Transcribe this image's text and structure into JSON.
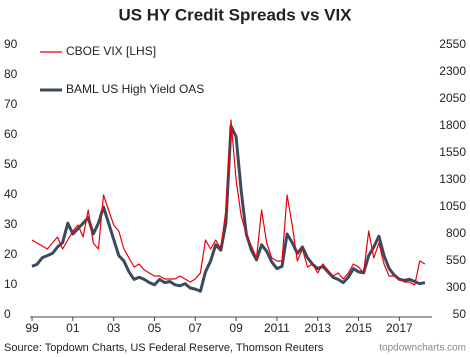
{
  "chart_data": {
    "type": "line",
    "title": "US HY Credit Spreads vs VIX",
    "source": "Source: Topdown Charts, US Federal Reserve, Thomson Reuters",
    "watermark": "topdowncharts.com",
    "x": [
      1999,
      1999.25,
      1999.5,
      1999.75,
      2000,
      2000.25,
      2000.5,
      2000.75,
      2001,
      2001.25,
      2001.5,
      2001.75,
      2002,
      2002.25,
      2002.5,
      2002.75,
      2003,
      2003.25,
      2003.5,
      2003.75,
      2004,
      2004.25,
      2004.5,
      2004.75,
      2005,
      2005.25,
      2005.5,
      2005.75,
      2006,
      2006.25,
      2006.5,
      2006.75,
      2007,
      2007.25,
      2007.5,
      2007.75,
      2008,
      2008.25,
      2008.5,
      2008.75,
      2009,
      2009.25,
      2009.5,
      2009.75,
      2010,
      2010.25,
      2010.5,
      2010.75,
      2011,
      2011.25,
      2011.5,
      2011.75,
      2012,
      2012.25,
      2012.5,
      2012.75,
      2013,
      2013.25,
      2013.5,
      2013.75,
      2014,
      2014.25,
      2014.5,
      2014.75,
      2015,
      2015.25,
      2015.5,
      2015.75,
      2016,
      2016.25,
      2016.5,
      2016.75,
      2017,
      2017.25,
      2017.5,
      2017.75,
      2018,
      2018.25
    ],
    "xlim": [
      1998.9,
      2018.6
    ],
    "xticks": [
      {
        "value": 1999,
        "label": "99"
      },
      {
        "value": 2001,
        "label": "01"
      },
      {
        "value": 2003,
        "label": "03"
      },
      {
        "value": 2005,
        "label": "05"
      },
      {
        "value": 2007,
        "label": "07"
      },
      {
        "value": 2009,
        "label": "09"
      },
      2011,
      2013,
      2015,
      2017
    ],
    "ylim": [
      0,
      90
    ],
    "yticks": [
      0,
      10,
      20,
      30,
      40,
      50,
      60,
      70,
      80,
      90
    ],
    "y2lim": [
      50,
      2550
    ],
    "y2ticks": [
      50,
      300,
      550,
      800,
      1050,
      1300,
      1550,
      1800,
      2050,
      2300,
      2550
    ],
    "legend": "upper left",
    "series": [
      {
        "name": "CBOE VIX [LHS]",
        "color": "#e8000b",
        "values": [
          25,
          24,
          23,
          22,
          24,
          26,
          22,
          25,
          28,
          30,
          26,
          35,
          24,
          22,
          40,
          35,
          30,
          28,
          22,
          19,
          16,
          17,
          15,
          14,
          13,
          13,
          12,
          12,
          12,
          13,
          12,
          11,
          12,
          14,
          25,
          22,
          25,
          22,
          35,
          65,
          45,
          33,
          27,
          23,
          19,
          35,
          24,
          19,
          18,
          18,
          40,
          30,
          18,
          22,
          16,
          17,
          14,
          17,
          15,
          13,
          14,
          12,
          14,
          17,
          16,
          14,
          28,
          19,
          24,
          17,
          13,
          13,
          12,
          11,
          11,
          10,
          18,
          17
        ]
      },
      {
        "name": "BAML US High Yield OAS",
        "color": "#3c4a5c",
        "axis": "y2",
        "values": [
          500,
          520,
          580,
          600,
          620,
          680,
          720,
          900,
          800,
          850,
          900,
          950,
          800,
          900,
          1050,
          900,
          750,
          600,
          550,
          450,
          380,
          400,
          380,
          350,
          330,
          380,
          350,
          360,
          330,
          320,
          340,
          300,
          290,
          270,
          450,
          550,
          700,
          650,
          900,
          1800,
          1700,
          1200,
          800,
          650,
          560,
          700,
          640,
          540,
          480,
          500,
          800,
          720,
          620,
          680,
          580,
          520,
          480,
          500,
          450,
          400,
          380,
          350,
          400,
          480,
          450,
          440,
          600,
          680,
          780,
          600,
          480,
          420,
          380,
          370,
          380,
          360,
          340,
          350
        ]
      }
    ]
  }
}
